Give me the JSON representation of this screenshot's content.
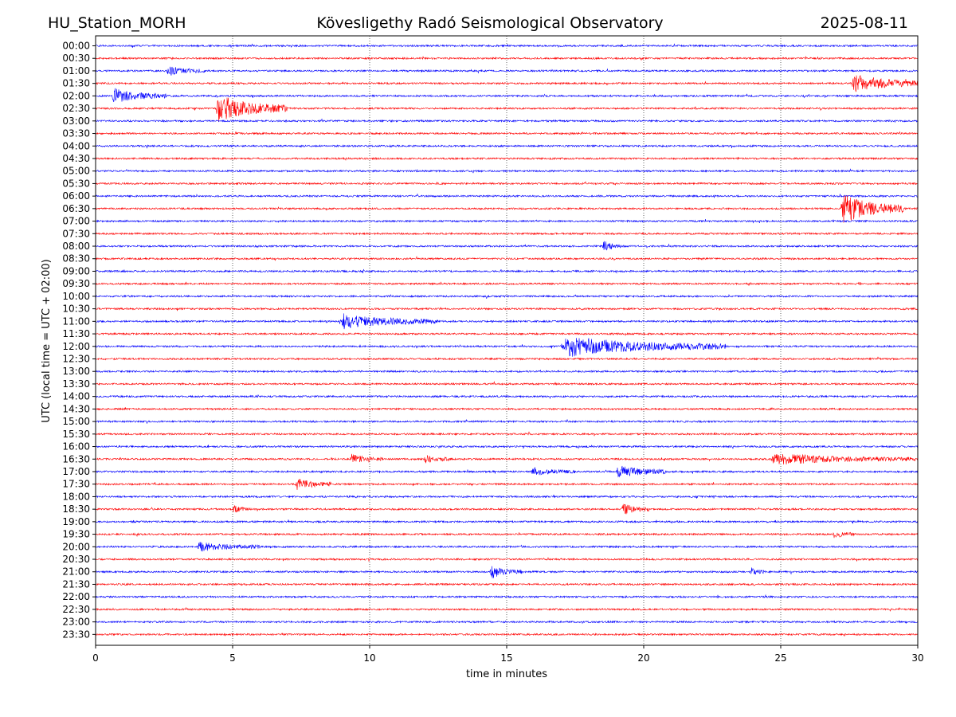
{
  "header": {
    "station": "HU_Station_MORH",
    "observatory": "Kövesligethy Radó Seismological Observatory",
    "date": "2025-08-11"
  },
  "chart_data": {
    "type": "line",
    "xlabel": "time in minutes",
    "ylabel": "UTC (local time = UTC + 02:00)",
    "xlim": [
      0,
      30
    ],
    "x_ticks": [
      0,
      5,
      10,
      15,
      20,
      25,
      30
    ],
    "grid": "vertical dotted lines at 5-minute ticks",
    "series_colors": [
      "#0000ff",
      "#ff0000"
    ],
    "rows": [
      "00:00",
      "00:30",
      "01:00",
      "01:30",
      "02:00",
      "02:30",
      "03:00",
      "03:30",
      "04:00",
      "04:30",
      "05:00",
      "05:30",
      "06:00",
      "06:30",
      "07:00",
      "07:30",
      "08:00",
      "08:30",
      "09:00",
      "09:30",
      "10:00",
      "10:30",
      "11:00",
      "11:30",
      "12:00",
      "12:30",
      "13:00",
      "13:30",
      "14:00",
      "14:30",
      "15:00",
      "15:30",
      "16:00",
      "16:30",
      "17:00",
      "17:30",
      "18:00",
      "18:30",
      "19:00",
      "19:30",
      "20:00",
      "20:30",
      "21:00",
      "21:30",
      "22:00",
      "22:30",
      "23:00",
      "23:30"
    ],
    "events": [
      {
        "row": "01:00",
        "start_min": 2.6,
        "end_min": 4.0,
        "relative_amplitude": 0.25
      },
      {
        "row": "01:30",
        "start_min": 27.6,
        "end_min": 30.0,
        "relative_amplitude": 0.55
      },
      {
        "row": "02:00",
        "start_min": 0.6,
        "end_min": 2.6,
        "relative_amplitude": 0.4
      },
      {
        "row": "02:30",
        "start_min": 4.4,
        "end_min": 7.0,
        "relative_amplitude": 0.75
      },
      {
        "row": "06:30",
        "start_min": 27.2,
        "end_min": 29.5,
        "relative_amplitude": 0.8
      },
      {
        "row": "08:00",
        "start_min": 18.5,
        "end_min": 19.2,
        "relative_amplitude": 0.3
      },
      {
        "row": "11:00",
        "start_min": 8.9,
        "end_min": 12.5,
        "relative_amplitude": 0.4
      },
      {
        "row": "12:00",
        "start_min": 17.0,
        "end_min": 23.0,
        "relative_amplitude": 0.55
      },
      {
        "row": "16:30",
        "start_min": 9.3,
        "end_min": 10.5,
        "relative_amplitude": 0.25
      },
      {
        "row": "16:30",
        "start_min": 12.0,
        "end_min": 13.0,
        "relative_amplitude": 0.2
      },
      {
        "row": "16:30",
        "start_min": 24.6,
        "end_min": 30.0,
        "relative_amplitude": 0.3
      },
      {
        "row": "17:00",
        "start_min": 15.9,
        "end_min": 17.5,
        "relative_amplitude": 0.2
      },
      {
        "row": "17:00",
        "start_min": 19.0,
        "end_min": 20.8,
        "relative_amplitude": 0.35
      },
      {
        "row": "17:30",
        "start_min": 7.3,
        "end_min": 8.6,
        "relative_amplitude": 0.3
      },
      {
        "row": "18:30",
        "start_min": 5.0,
        "end_min": 5.6,
        "relative_amplitude": 0.2
      },
      {
        "row": "18:30",
        "start_min": 19.2,
        "end_min": 20.2,
        "relative_amplitude": 0.3
      },
      {
        "row": "19:30",
        "start_min": 26.9,
        "end_min": 27.7,
        "relative_amplitude": 0.2
      },
      {
        "row": "20:00",
        "start_min": 3.7,
        "end_min": 6.0,
        "relative_amplitude": 0.25
      },
      {
        "row": "21:00",
        "start_min": 14.4,
        "end_min": 15.6,
        "relative_amplitude": 0.35
      },
      {
        "row": "21:00",
        "start_min": 23.9,
        "end_min": 24.4,
        "relative_amplitude": 0.2
      }
    ]
  }
}
